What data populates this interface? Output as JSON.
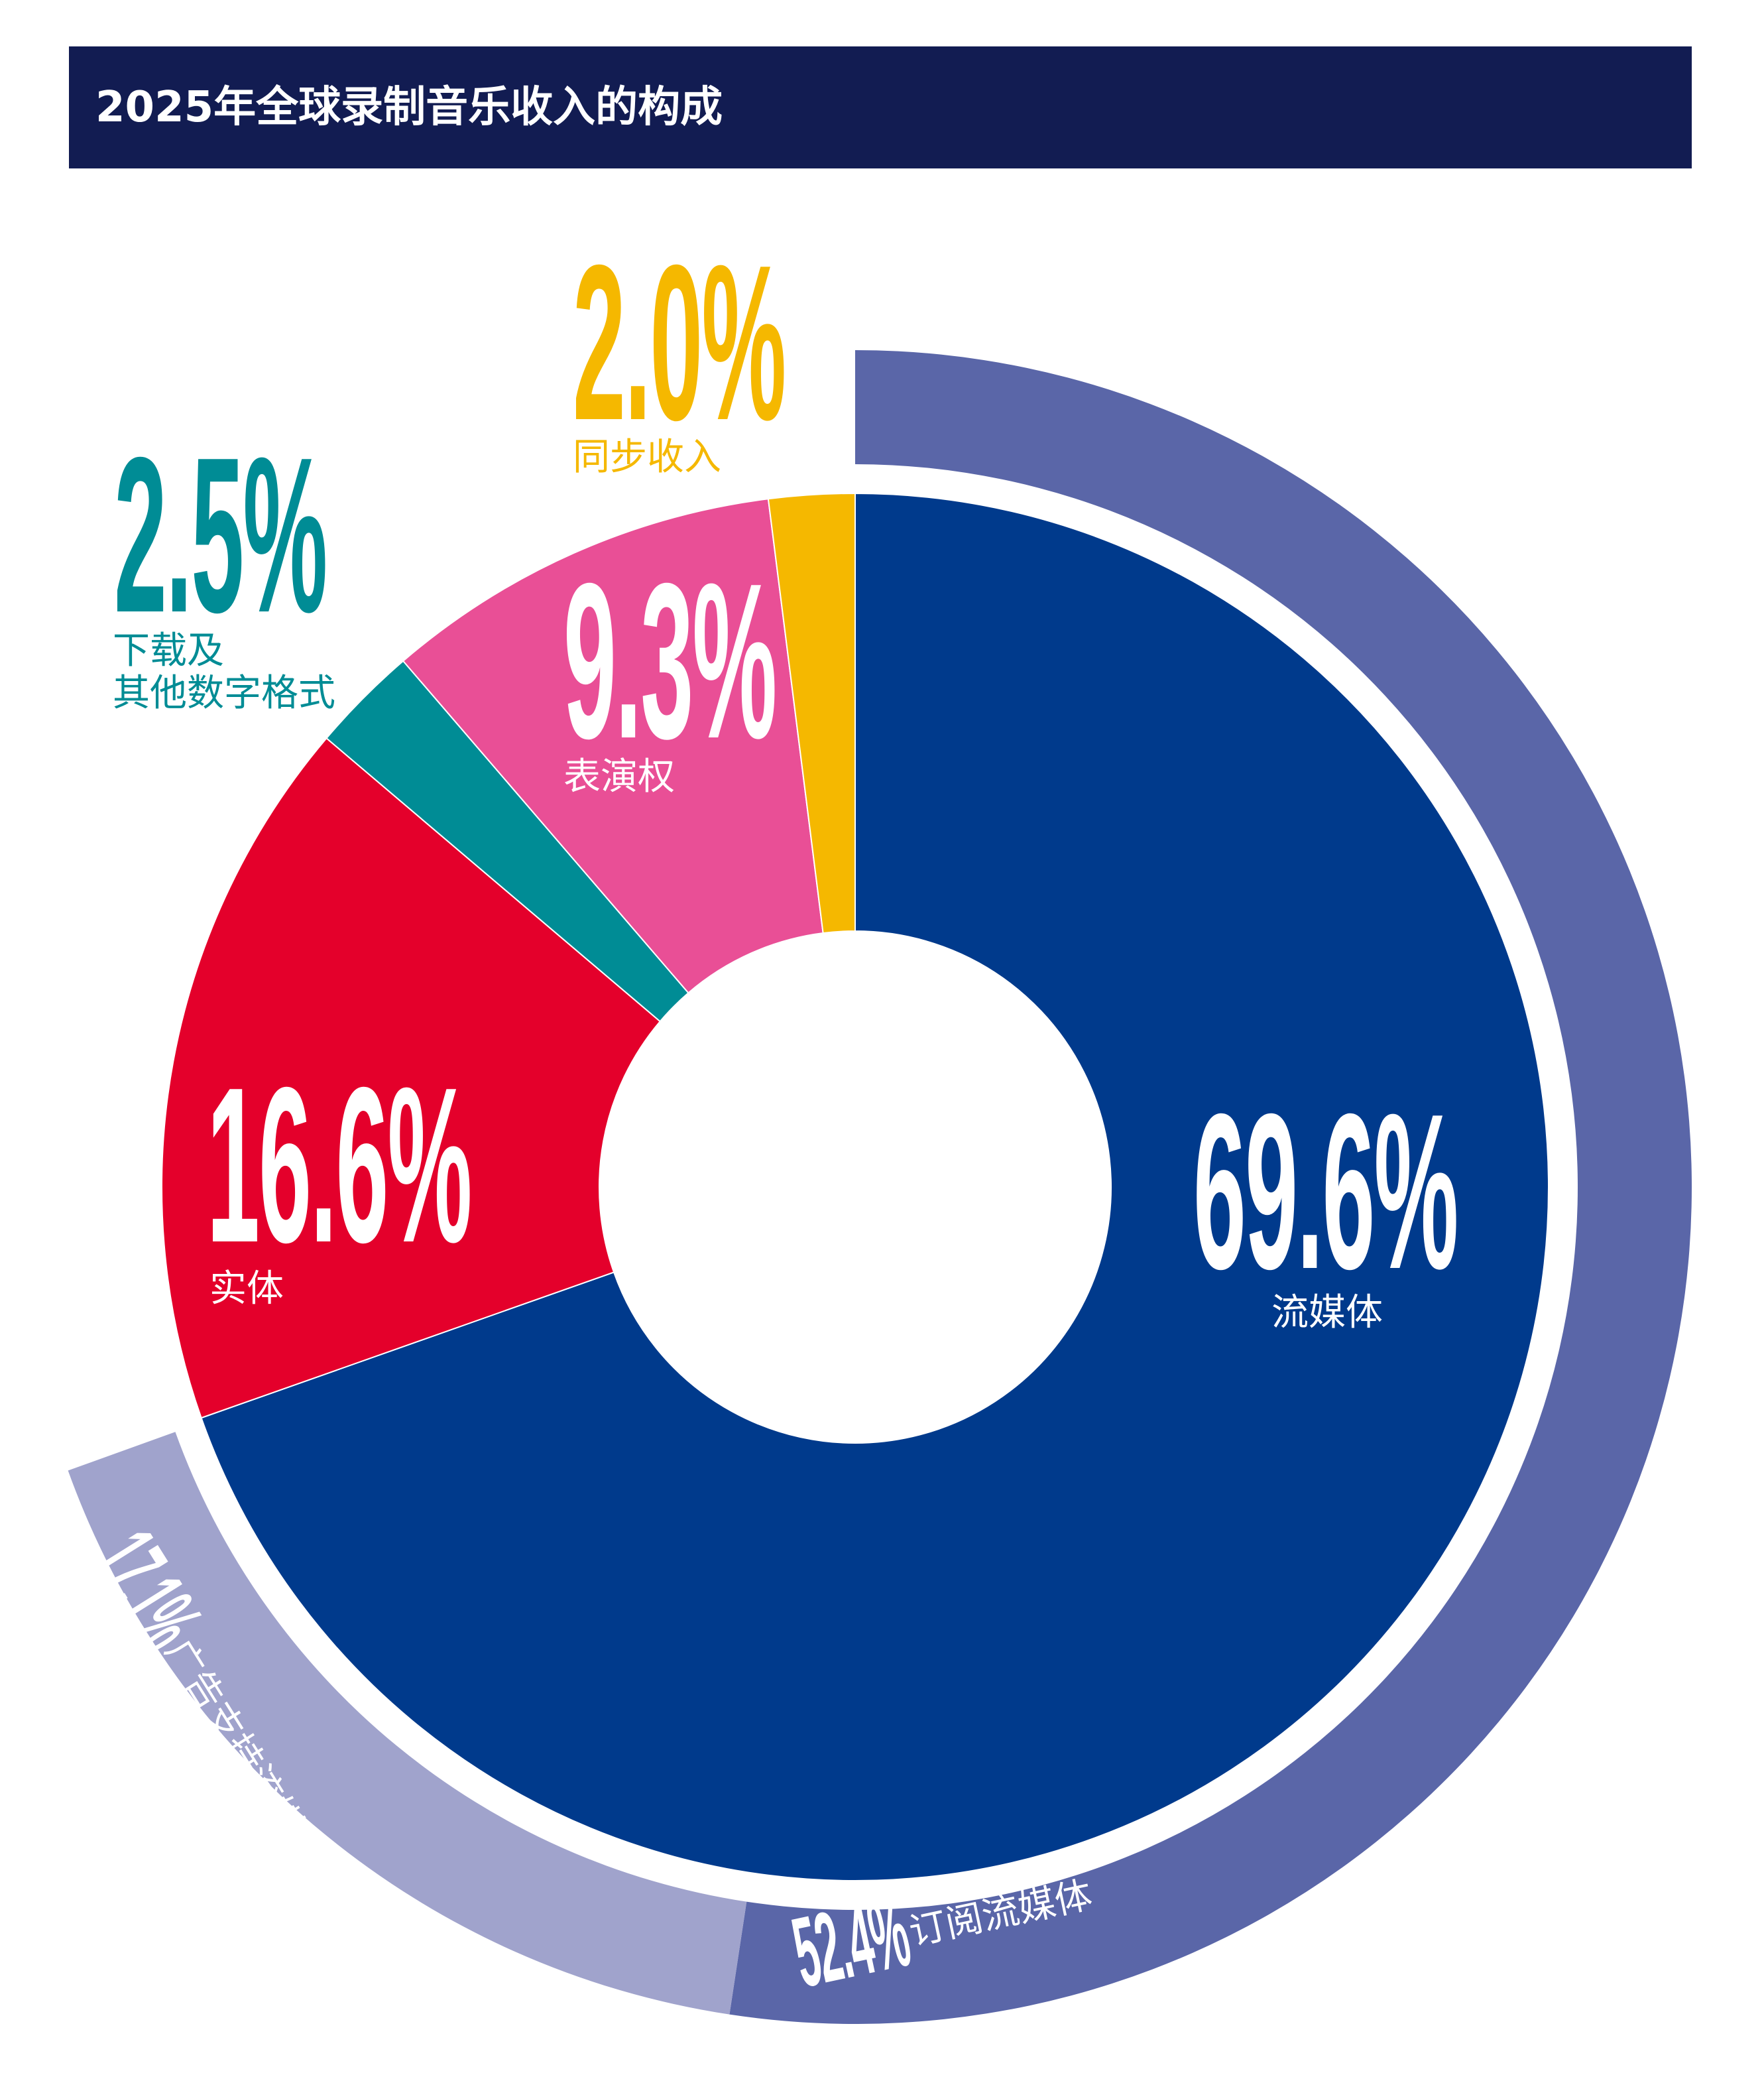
{
  "chart_data": {
    "type": "donut",
    "title": "2025年全球录制音乐收入的构成",
    "categories": [
      "流媒体",
      "实体",
      "下载及\n其他数字格式",
      "表演权",
      "同步收入"
    ],
    "values": [
      69.6,
      16.6,
      2.5,
      9.3,
      2.0
    ],
    "value_labels": [
      "69.6%",
      "16.6%",
      "2.5%",
      "9.3%",
      "2.0%"
    ],
    "colors": [
      "#003a8c",
      "#e4002b",
      "#008c95",
      "#e94f96",
      "#f5b800"
    ],
    "outer_ring": {
      "categories": [
        "订阅流媒体",
        "广告支持流媒体"
      ],
      "values": [
        52.4,
        17.1
      ],
      "value_labels": [
        "52.4%",
        "17.1%"
      ],
      "colors": [
        "#5a66a8",
        "#a0a3cc"
      ]
    }
  }
}
